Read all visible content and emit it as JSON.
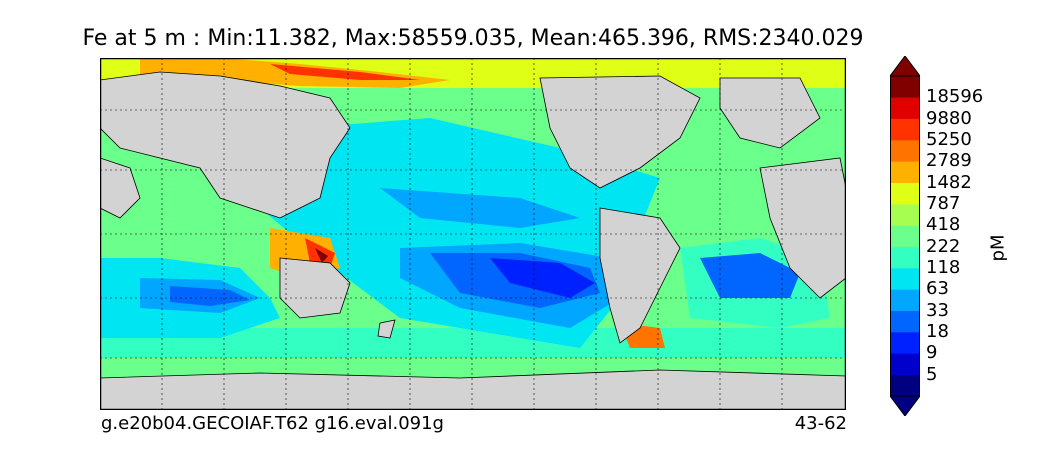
{
  "title": "Fe at 5 m : Min:11.382, Max:58559.035, Mean:465.396, RMS:2340.029",
  "footer": {
    "case_name": "g.e20b04.GECOIAF.T62 g16.eval.091g",
    "years": "43-62"
  },
  "colorbar": {
    "units": "pM",
    "ticks": [
      "18596",
      "9880",
      "5250",
      "2789",
      "1482",
      "787",
      "418",
      "222",
      "118",
      "63",
      "33",
      "18",
      "9",
      "5"
    ],
    "colors": [
      "#000080",
      "#0000cd",
      "#0021ff",
      "#0066ff",
      "#00a6ff",
      "#00e5f2",
      "#34ff c3",
      "#6bff8b",
      "#a6ff50",
      "#e0ff16",
      "#ffb000",
      "#ff7300",
      "#ff3200",
      "#e00000",
      "#800000"
    ],
    "extend": "both"
  },
  "map": {
    "land_color": "#d3d3d3",
    "gridlines": "dotted",
    "ocean_field": [
      {
        "region": "arctic",
        "level": "787-1482"
      },
      {
        "region": "north-pacific-subpolar",
        "level": "222-418"
      },
      {
        "region": "pacific-subtropical",
        "level": "63-118"
      },
      {
        "region": "south-pacific-gyre",
        "level": "9-18"
      },
      {
        "region": "south-atlantic-gyre",
        "level": "18-33"
      },
      {
        "region": "indian-ocean-south",
        "level": "33-63"
      },
      {
        "region": "southern-ocean",
        "level": "118-222"
      },
      {
        "region": "indonesia-new-guinea",
        "level": "2789-18596"
      }
    ]
  }
}
